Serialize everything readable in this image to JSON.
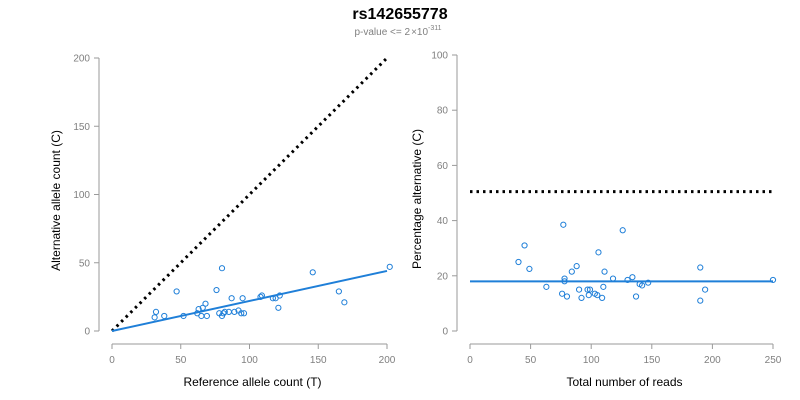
{
  "title": "rs142655778",
  "subtitle": {
    "prefix": "p-value <= 2",
    "times": "×",
    "base": "10",
    "exponent": "-311"
  },
  "colors": {
    "points": "#1f7fd8",
    "fit_line": "#1f7fd8",
    "reference_line": "#000000",
    "axis": "#9a9a9a",
    "tick_label": "#7f7f7f"
  },
  "chart_data": [
    {
      "type": "scatter",
      "xlabel": "Reference allele count (T)",
      "ylabel": "Alternative allele count (C)",
      "xlim": [
        0,
        200
      ],
      "ylim": [
        0,
        200
      ],
      "xticks": [
        0,
        50,
        100,
        150,
        200
      ],
      "yticks": [
        0,
        50,
        100,
        150,
        200
      ],
      "points": [
        {
          "x": 31,
          "y": 10
        },
        {
          "x": 32,
          "y": 14
        },
        {
          "x": 38,
          "y": 11
        },
        {
          "x": 47,
          "y": 29
        },
        {
          "x": 52,
          "y": 11
        },
        {
          "x": 62,
          "y": 13
        },
        {
          "x": 63,
          "y": 16
        },
        {
          "x": 65,
          "y": 11
        },
        {
          "x": 66,
          "y": 17
        },
        {
          "x": 68,
          "y": 20
        },
        {
          "x": 69,
          "y": 11
        },
        {
          "x": 76,
          "y": 30
        },
        {
          "x": 78,
          "y": 13
        },
        {
          "x": 80,
          "y": 11
        },
        {
          "x": 80,
          "y": 46
        },
        {
          "x": 81,
          "y": 13
        },
        {
          "x": 82,
          "y": 14
        },
        {
          "x": 85,
          "y": 14
        },
        {
          "x": 87,
          "y": 24
        },
        {
          "x": 89,
          "y": 14
        },
        {
          "x": 92,
          "y": 15
        },
        {
          "x": 94,
          "y": 13
        },
        {
          "x": 95,
          "y": 24
        },
        {
          "x": 96,
          "y": 13
        },
        {
          "x": 108,
          "y": 25
        },
        {
          "x": 109,
          "y": 26
        },
        {
          "x": 117,
          "y": 24
        },
        {
          "x": 119,
          "y": 24
        },
        {
          "x": 121,
          "y": 17
        },
        {
          "x": 122,
          "y": 26
        },
        {
          "x": 146,
          "y": 43
        },
        {
          "x": 165,
          "y": 29
        },
        {
          "x": 169,
          "y": 21
        },
        {
          "x": 202,
          "y": 47
        }
      ],
      "fit_line": {
        "x": [
          0,
          200
        ],
        "y": [
          0,
          44
        ]
      },
      "reference_line": {
        "x": [
          0,
          200
        ],
        "y": [
          0,
          200
        ]
      }
    },
    {
      "type": "scatter",
      "xlabel": "Total number of reads",
      "ylabel": "Percentage alternative (C)",
      "xlim": [
        0,
        250
      ],
      "ylim": [
        0,
        100
      ],
      "xticks": [
        0,
        50,
        100,
        150,
        200,
        250
      ],
      "yticks": [
        0,
        20,
        40,
        60,
        80,
        100
      ],
      "points": [
        {
          "x": 40,
          "y": 25
        },
        {
          "x": 45,
          "y": 31
        },
        {
          "x": 49,
          "y": 22.5
        },
        {
          "x": 63,
          "y": 16
        },
        {
          "x": 76,
          "y": 13.5
        },
        {
          "x": 77,
          "y": 38.5
        },
        {
          "x": 78,
          "y": 19
        },
        {
          "x": 78,
          "y": 18
        },
        {
          "x": 80,
          "y": 12.5
        },
        {
          "x": 84,
          "y": 21.5
        },
        {
          "x": 88,
          "y": 23.5
        },
        {
          "x": 90,
          "y": 15
        },
        {
          "x": 92,
          "y": 12
        },
        {
          "x": 97,
          "y": 15
        },
        {
          "x": 98,
          "y": 13
        },
        {
          "x": 99,
          "y": 15
        },
        {
          "x": 103,
          "y": 13.5
        },
        {
          "x": 105,
          "y": 13
        },
        {
          "x": 106,
          "y": 28.5
        },
        {
          "x": 109,
          "y": 12
        },
        {
          "x": 110,
          "y": 16
        },
        {
          "x": 111,
          "y": 21.5
        },
        {
          "x": 118,
          "y": 19
        },
        {
          "x": 126,
          "y": 36.5
        },
        {
          "x": 130,
          "y": 18.5
        },
        {
          "x": 134,
          "y": 19.5
        },
        {
          "x": 137,
          "y": 12.5
        },
        {
          "x": 140,
          "y": 17
        },
        {
          "x": 142,
          "y": 16.5
        },
        {
          "x": 147,
          "y": 17.5
        },
        {
          "x": 190,
          "y": 11
        },
        {
          "x": 190,
          "y": 23
        },
        {
          "x": 194,
          "y": 15
        },
        {
          "x": 250,
          "y": 18.5
        }
      ],
      "fit_line": {
        "x": [
          0,
          250
        ],
        "y": [
          18,
          18
        ]
      },
      "reference_line": {
        "x": [
          0,
          250
        ],
        "y": [
          50.5,
          50.5
        ]
      }
    }
  ]
}
